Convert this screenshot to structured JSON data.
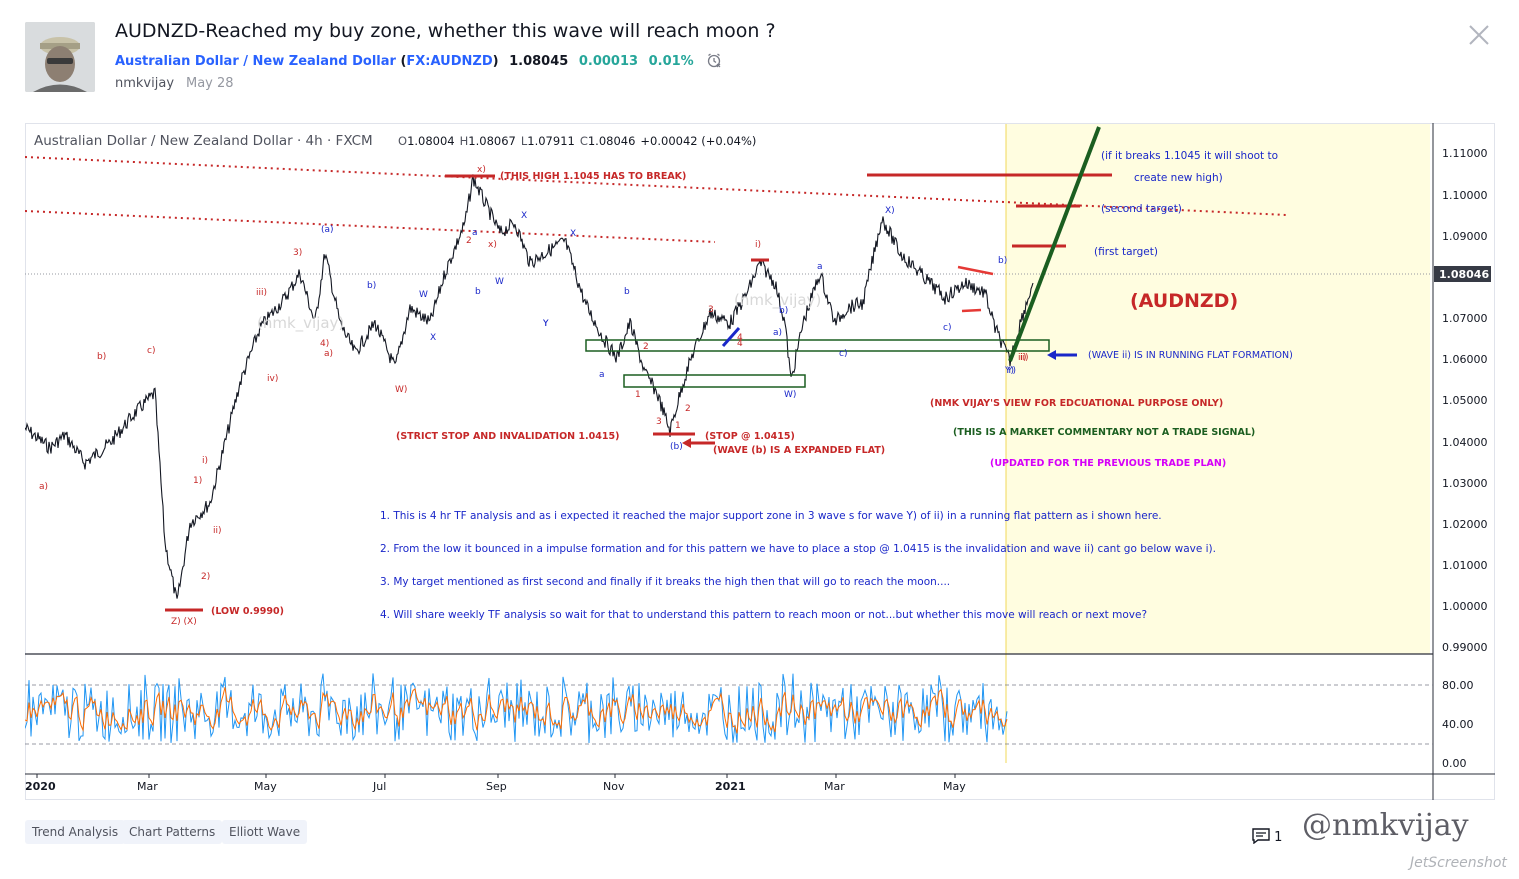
{
  "idea": {
    "title": "AUDNZD-Reached my buy zone, whether this wave will reach moon ?",
    "symbol_name": "Australian Dollar / New Zealand Dollar",
    "symbol_code_prefix": "(",
    "symbol_code": "FX:AUDNZD",
    "symbol_code_suffix": ")",
    "price": "1.08045",
    "change": "0.00013",
    "change_pct": "0.01%",
    "author": "nmkvijay",
    "date": "May 28"
  },
  "chart": {
    "header": "Australian Dollar / New Zealand Dollar · 4h · FXCM",
    "ohlc": {
      "o_label": "O",
      "o": "1.08004",
      "h_label": "H",
      "h": "1.08067",
      "l_label": "L",
      "l": "1.07911",
      "c_label": "C",
      "c": "1.08046",
      "chg": "+0.00042 (+0.04%)"
    },
    "current_price_label": "1.08046",
    "price_axis": [
      "1.11000",
      "1.10000",
      "1.09000",
      "1.08000",
      "1.07000",
      "1.06000",
      "1.05000",
      "1.04000",
      "1.03000",
      "1.02000",
      "1.01000",
      "1.00000",
      "0.99000"
    ],
    "osc_axis": [
      "80.00",
      "40.00",
      "0.00"
    ],
    "time_axis": [
      "2020",
      "Mar",
      "May",
      "Jul",
      "Sep",
      "Nov",
      "2021",
      "Mar",
      "May"
    ],
    "annotations": {
      "high_break": "(THIS HIGH 1.1045 HAS TO BREAK)",
      "strict_stop": "(STRICT STOP AND INVALIDATION 1.0415)",
      "stop": "(STOP @ 1.0415)",
      "expanded_flat": "(WAVE (b) IS A EXPANDED FLAT)",
      "low": "(LOW 0.9990)",
      "breaks_1": "(if it breaks 1.1045 it will shoot to",
      "breaks_2": "create new high)",
      "second_target": "(second target)",
      "first_target": "(first target)",
      "pair": "(AUDNZD)",
      "running_flat": "(WAVE ii) IS IN RUNNING FLAT FORMATION)",
      "edu": "(NMK VIJAY'S VIEW FOR EDCUATIONAL PURPOSE ONLY)",
      "commentary": "(THIS IS A MARKET COMMENTARY NOT A TRADE SIGNAL)",
      "updated": "(UPDATED FOR THE PREVIOUS TRADE PLAN)",
      "note1": "1. This is 4 hr TF analysis and as i expected it reached the major support zone in 3 wave s for wave Y) of ii) in a running flat pattern as i shown here.",
      "note2": "2. From the low it bounced in a impulse formation and for this pattern we have to place a stop @ 1.0415 is the invalidation and wave ii) cant go below wave i).",
      "note3": "3. My target mentioned as first second and finally if it breaks the high then that will go to reach the moon....",
      "note4": "4. Will share weekly TF analysis so wait for that to understand this pattern to reach moon or not...but whether this move will reach or next move?",
      "wm1": "(nmk_vijay)",
      "wm2": "(nmk_vijay)"
    },
    "wave_labels": [
      "a)",
      "b)",
      "c)",
      "i)",
      "ii)",
      "iii)",
      "iv)",
      "1)",
      "2)",
      "3)",
      "4)",
      "(a)",
      "Z) (X)",
      "W)",
      "X)",
      "Y)",
      "(b)",
      "x)",
      "x)",
      "X",
      "X",
      "Y",
      "W",
      "a",
      "b",
      "W",
      "X",
      "Y",
      "1",
      "2",
      "3",
      "4",
      "2",
      "a)",
      "b)",
      "a)",
      "b)",
      "c)",
      "a",
      "i)",
      "ii)",
      "b)",
      "c)",
      "Y)",
      "ii)",
      "1",
      "2",
      "3",
      "4",
      "b",
      "a",
      "W)"
    ]
  },
  "tags": [
    "Trend Analysis",
    "Chart Patterns",
    "Elliott Wave"
  ],
  "comments_count": "1",
  "watermark": "@nmkvijay",
  "jet": "JetScreenshot",
  "colors": {
    "bull": "#26a69a",
    "accent": "#2962ff",
    "annot_red": "#c62828",
    "annot_blue": "#1a27c9",
    "annot_green": "#1b5e20",
    "annot_magenta": "#d500f9",
    "highlight": "#fffde0"
  }
}
